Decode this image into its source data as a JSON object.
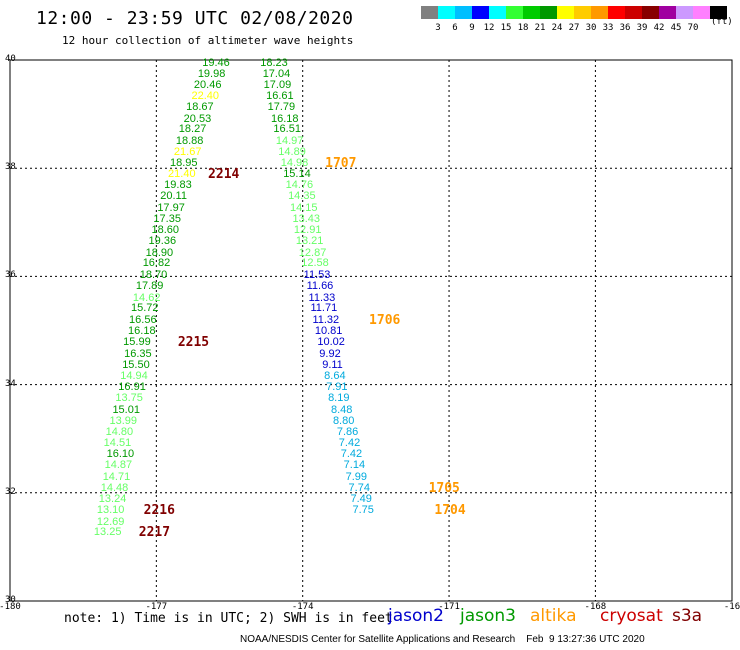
{
  "header": {
    "title": "12:00 - 23:59 UTC 02/08/2020",
    "subtitle": "12 hour collection of altimeter wave heights"
  },
  "colorbar": {
    "colors": [
      "#808080",
      "#00ffff",
      "#00bfff",
      "#0000ff",
      "#00ffff",
      "#33ff33",
      "#00cc00",
      "#009900",
      "#ffff00",
      "#ffcc00",
      "#ff9900",
      "#ff0000",
      "#cc0000",
      "#880000",
      "#a000a0",
      "#cc99ff",
      "#ff80ff",
      "#000000"
    ],
    "labels": [
      "3",
      "6",
      "9",
      "12",
      "15",
      "18",
      "21",
      "24",
      "27",
      "30",
      "33",
      "36",
      "39",
      "42",
      "45",
      "70"
    ],
    "unit": "(ft)"
  },
  "axes": {
    "y_labels": [
      "40",
      "38",
      "36",
      "34",
      "32",
      "30"
    ],
    "x_labels": [
      "-180",
      "-177",
      "-174",
      "-171",
      "-168",
      "-16"
    ]
  },
  "tracks": [
    {
      "id": "2214",
      "color": "#800000",
      "points": [
        {
          "lat": 39.93,
          "lon": -176.06,
          "v": "19.46",
          "c": "#009900"
        },
        {
          "lat": 39.73,
          "lon": -176.15,
          "v": "19.98",
          "c": "#009900"
        },
        {
          "lat": 39.52,
          "lon": -176.23,
          "v": "20.46",
          "c": "#009900"
        },
        {
          "lat": 39.31,
          "lon": -176.28,
          "v": "22.40",
          "c": "#ffff00"
        },
        {
          "lat": 39.11,
          "lon": -176.39,
          "v": "18.67",
          "c": "#009900"
        },
        {
          "lat": 38.9,
          "lon": -176.44,
          "v": "20.53",
          "c": "#009900"
        },
        {
          "lat": 38.7,
          "lon": -176.54,
          "v": "18.27",
          "c": "#009900"
        },
        {
          "lat": 38.49,
          "lon": -176.6,
          "v": "18.88",
          "c": "#009900"
        },
        {
          "lat": 38.28,
          "lon": -176.64,
          "v": "21.67",
          "c": "#ffff00"
        },
        {
          "lat": 38.08,
          "lon": -176.72,
          "v": "18.95",
          "c": "#009900"
        },
        {
          "lat": 37.87,
          "lon": -176.76,
          "v": "21.40",
          "c": "#ffff00"
        },
        {
          "lat": 37.67,
          "lon": -176.84,
          "v": "19.83",
          "c": "#009900"
        },
        {
          "lat": 37.46,
          "lon": -176.92,
          "v": "20.11",
          "c": "#009900"
        },
        {
          "lat": 37.25,
          "lon": -176.98,
          "v": "17.97",
          "c": "#009900"
        },
        {
          "lat": 37.04,
          "lon": -177.06,
          "v": "17.35",
          "c": "#009900"
        },
        {
          "lat": 36.84,
          "lon": -177.1,
          "v": "18.60",
          "c": "#009900"
        },
        {
          "lat": 36.63,
          "lon": -177.16,
          "v": "19.36",
          "c": "#009900"
        },
        {
          "lat": 36.42,
          "lon": -177.22,
          "v": "18.90",
          "c": "#009900"
        }
      ],
      "label_at": {
        "lat": 37.87,
        "lon": -175.94
      }
    },
    {
      "id": "2215",
      "color": "#800000",
      "points": [
        {
          "lat": 36.22,
          "lon": -177.28,
          "v": "16.82",
          "c": "#009900"
        },
        {
          "lat": 36.01,
          "lon": -177.34,
          "v": "18.70",
          "c": "#009900"
        },
        {
          "lat": 35.8,
          "lon": -177.42,
          "v": "17.89",
          "c": "#009900"
        },
        {
          "lat": 35.59,
          "lon": -177.48,
          "v": "14.62",
          "c": "#66ff66"
        },
        {
          "lat": 35.39,
          "lon": -177.52,
          "v": "15.72",
          "c": "#009900"
        },
        {
          "lat": 35.18,
          "lon": -177.56,
          "v": "16.56",
          "c": "#009900"
        },
        {
          "lat": 34.97,
          "lon": -177.58,
          "v": "16.18",
          "c": "#009900"
        },
        {
          "lat": 34.77,
          "lon": -177.68,
          "v": "15.99",
          "c": "#009900"
        },
        {
          "lat": 34.55,
          "lon": -177.66,
          "v": "16.35",
          "c": "#009900"
        },
        {
          "lat": 34.35,
          "lon": -177.7,
          "v": "15.50",
          "c": "#009900"
        },
        {
          "lat": 34.14,
          "lon": -177.74,
          "v": "14.94",
          "c": "#66ff66"
        },
        {
          "lat": 33.93,
          "lon": -177.78,
          "v": "16.91",
          "c": "#009900"
        },
        {
          "lat": 33.73,
          "lon": -177.84,
          "v": "13.75",
          "c": "#66ff66"
        },
        {
          "lat": 33.52,
          "lon": -177.9,
          "v": "15.01",
          "c": "#009900"
        },
        {
          "lat": 33.31,
          "lon": -177.96,
          "v": "13.99",
          "c": "#66ff66"
        },
        {
          "lat": 33.11,
          "lon": -178.04,
          "v": "14.80",
          "c": "#66ff66"
        },
        {
          "lat": 32.9,
          "lon": -178.08,
          "v": "14.51",
          "c": "#66ff66"
        }
      ],
      "label_at": {
        "lat": 34.77,
        "lon": -176.56
      }
    },
    {
      "id": "2216",
      "color": "#800000",
      "points": [
        {
          "lat": 32.69,
          "lon": -178.02,
          "v": "16.10",
          "c": "#009900"
        },
        {
          "lat": 32.49,
          "lon": -178.06,
          "v": "14.87",
          "c": "#66ff66"
        },
        {
          "lat": 32.28,
          "lon": -178.1,
          "v": "14.71",
          "c": "#66ff66"
        },
        {
          "lat": 32.07,
          "lon": -178.14,
          "v": "14.48",
          "c": "#66ff66"
        },
        {
          "lat": 31.87,
          "lon": -178.18,
          "v": "13.24",
          "c": "#66ff66"
        },
        {
          "lat": 31.66,
          "lon": -178.22,
          "v": "13.10",
          "c": "#66ff66"
        }
      ],
      "label_at": {
        "lat": 31.66,
        "lon": -177.26
      }
    },
    {
      "id": "2217",
      "color": "#800000",
      "points": [
        {
          "lat": 31.45,
          "lon": -178.22,
          "v": "12.69",
          "c": "#66ff66"
        },
        {
          "lat": 31.25,
          "lon": -178.28,
          "v": "13.25",
          "c": "#66ff66"
        }
      ],
      "label_at": {
        "lat": 31.25,
        "lon": -177.36
      }
    },
    {
      "id": "1707",
      "color": "#ff9900",
      "points": [
        {
          "lat": 39.93,
          "lon": -174.87,
          "v": "18.23",
          "c": "#009900"
        },
        {
          "lat": 39.73,
          "lon": -174.82,
          "v": "17.04",
          "c": "#009900"
        },
        {
          "lat": 39.52,
          "lon": -174.8,
          "v": "17.09",
          "c": "#009900"
        },
        {
          "lat": 39.31,
          "lon": -174.75,
          "v": "16.61",
          "c": "#009900"
        },
        {
          "lat": 39.11,
          "lon": -174.72,
          "v": "17.79",
          "c": "#009900"
        },
        {
          "lat": 38.9,
          "lon": -174.65,
          "v": "16.18",
          "c": "#009900"
        },
        {
          "lat": 38.7,
          "lon": -174.6,
          "v": "16.51",
          "c": "#009900"
        },
        {
          "lat": 38.49,
          "lon": -174.55,
          "v": "14.97",
          "c": "#66ff66"
        },
        {
          "lat": 38.28,
          "lon": -174.5,
          "v": "14.89",
          "c": "#66ff66"
        },
        {
          "lat": 38.08,
          "lon": -174.45,
          "v": "14.98",
          "c": "#66ff66"
        },
        {
          "lat": 37.87,
          "lon": -174.4,
          "v": "15.14",
          "c": "#009900"
        },
        {
          "lat": 37.67,
          "lon": -174.35,
          "v": "14.76",
          "c": "#66ff66"
        },
        {
          "lat": 37.46,
          "lon": -174.3,
          "v": "14.35",
          "c": "#66ff66"
        },
        {
          "lat": 37.25,
          "lon": -174.26,
          "v": "14.15",
          "c": "#66ff66"
        },
        {
          "lat": 37.04,
          "lon": -174.21,
          "v": "13.43",
          "c": "#66ff66"
        },
        {
          "lat": 36.84,
          "lon": -174.18,
          "v": "12.91",
          "c": "#66ff66"
        }
      ],
      "label_at": {
        "lat": 38.08,
        "lon": -173.54
      }
    },
    {
      "id": "1706",
      "color": "#ff9900",
      "points": [
        {
          "lat": 36.63,
          "lon": -174.14,
          "v": "13.21",
          "c": "#66ff66"
        },
        {
          "lat": 36.42,
          "lon": -174.08,
          "v": "12.87",
          "c": "#66ff66"
        },
        {
          "lat": 36.22,
          "lon": -174.03,
          "v": "12.58",
          "c": "#66ff66"
        },
        {
          "lat": 36.01,
          "lon": -173.98,
          "v": "11.53",
          "c": "#0000cc"
        },
        {
          "lat": 35.8,
          "lon": -173.92,
          "v": "11.66",
          "c": "#0000cc"
        },
        {
          "lat": 35.59,
          "lon": -173.88,
          "v": "11.33",
          "c": "#0000cc"
        },
        {
          "lat": 35.39,
          "lon": -173.84,
          "v": "11.71",
          "c": "#0000cc"
        },
        {
          "lat": 35.18,
          "lon": -173.8,
          "v": "11.32",
          "c": "#0000cc"
        },
        {
          "lat": 34.97,
          "lon": -173.75,
          "v": "10.81",
          "c": "#0000cc"
        },
        {
          "lat": 34.77,
          "lon": -173.7,
          "v": "10.02",
          "c": "#0000cc"
        },
        {
          "lat": 34.55,
          "lon": -173.66,
          "v": "9.92",
          "c": "#0000cc"
        },
        {
          "lat": 34.35,
          "lon": -173.6,
          "v": "9.11",
          "c": "#0000cc"
        }
      ],
      "label_at": {
        "lat": 35.18,
        "lon": -172.64
      }
    },
    {
      "id": "1705",
      "color": "#ff9900",
      "points": [
        {
          "lat": 34.14,
          "lon": -173.56,
          "v": "8.64",
          "c": "#00aadd"
        },
        {
          "lat": 33.93,
          "lon": -173.52,
          "v": "7.91",
          "c": "#00aadd"
        },
        {
          "lat": 33.73,
          "lon": -173.48,
          "v": "8.19",
          "c": "#00aadd"
        },
        {
          "lat": 33.52,
          "lon": -173.42,
          "v": "8.48",
          "c": "#00aadd"
        },
        {
          "lat": 33.31,
          "lon": -173.38,
          "v": "8.80",
          "c": "#00aadd"
        },
        {
          "lat": 33.11,
          "lon": -173.3,
          "v": "7.86",
          "c": "#00aadd"
        },
        {
          "lat": 32.9,
          "lon": -173.26,
          "v": "7.42",
          "c": "#00aadd"
        },
        {
          "lat": 32.69,
          "lon": -173.22,
          "v": "7.42",
          "c": "#00aadd"
        },
        {
          "lat": 32.49,
          "lon": -173.16,
          "v": "7.14",
          "c": "#00aadd"
        },
        {
          "lat": 32.28,
          "lon": -173.12,
          "v": "7.99",
          "c": "#00aadd"
        },
        {
          "lat": 32.07,
          "lon": -173.06,
          "v": "7.74",
          "c": "#00aadd"
        }
      ],
      "label_at": {
        "lat": 32.07,
        "lon": -171.42
      }
    },
    {
      "id": "1704",
      "color": "#ff9900",
      "points": [
        {
          "lat": 31.87,
          "lon": -173.02,
          "v": "7.49",
          "c": "#00aadd"
        },
        {
          "lat": 31.66,
          "lon": -172.98,
          "v": "7.75",
          "c": "#00aadd"
        }
      ],
      "label_at": {
        "lat": 31.66,
        "lon": -171.3
      }
    }
  ],
  "footer": {
    "note": "note: 1) Time is in UTC; 2) SWH is in feet",
    "satellites": [
      {
        "name": "jason2",
        "color": "#0000cc"
      },
      {
        "name": "jason3",
        "color": "#009900"
      },
      {
        "name": "altika",
        "color": "#ff9900"
      },
      {
        "name": "cryosat",
        "color": "#cc0000"
      },
      {
        "name": "s3a",
        "color": "#800000"
      }
    ],
    "credit": "NOAA/NESDIS Center for Satellite Applications and Research    Feb  9 13:27:36 UTC 2020"
  }
}
